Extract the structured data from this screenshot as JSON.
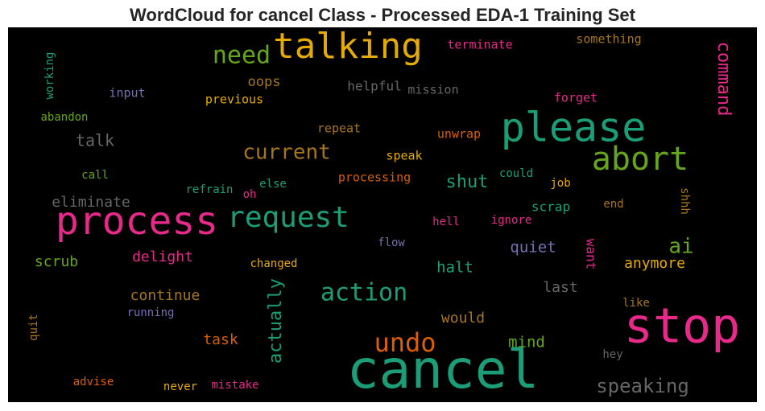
{
  "title": "WordCloud for cancel Class - Processed EDA-1 Training Set",
  "chart_data": {
    "type": "wordcloud",
    "title": "WordCloud for cancel Class - Processed EDA-1 Training Set",
    "background": "#000000",
    "colormap": "Dark2",
    "words": [
      {
        "text": "cancel",
        "weight": 100,
        "color": "#1b9e77"
      },
      {
        "text": "stop",
        "weight": 95,
        "color": "#e7298a"
      },
      {
        "text": "please",
        "weight": 80,
        "color": "#1b9e77"
      },
      {
        "text": "process",
        "weight": 78,
        "color": "#e7298a"
      },
      {
        "text": "talking",
        "weight": 70,
        "color": "#e6ab02"
      },
      {
        "text": "abort",
        "weight": 65,
        "color": "#66a61e"
      },
      {
        "text": "request",
        "weight": 58,
        "color": "#1b9e77"
      },
      {
        "text": "action",
        "weight": 48,
        "color": "#1b9e77"
      },
      {
        "text": "undo",
        "weight": 47,
        "color": "#d95f02"
      },
      {
        "text": "current",
        "weight": 44,
        "color": "#a6761d"
      },
      {
        "text": "need",
        "weight": 44,
        "color": "#66a61e"
      },
      {
        "text": "actually",
        "weight": 40,
        "color": "#1b9e77"
      },
      {
        "text": "speaking",
        "weight": 38,
        "color": "#666666"
      },
      {
        "text": "command",
        "weight": 38,
        "color": "#e7298a"
      },
      {
        "text": "ai",
        "weight": 36,
        "color": "#66a61e"
      },
      {
        "text": "shut",
        "weight": 32,
        "color": "#1b9e77"
      },
      {
        "text": "talk",
        "weight": 28,
        "color": "#666666"
      },
      {
        "text": "continue",
        "weight": 28,
        "color": "#a6761d"
      },
      {
        "text": "halt",
        "weight": 28,
        "color": "#1b9e77"
      },
      {
        "text": "mind",
        "weight": 27,
        "color": "#66a61e"
      },
      {
        "text": "quiet",
        "weight": 27,
        "color": "#7570b3"
      },
      {
        "text": "would",
        "weight": 27,
        "color": "#a6761d"
      },
      {
        "text": "task",
        "weight": 27,
        "color": "#d95f02"
      },
      {
        "text": "delight",
        "weight": 26,
        "color": "#e7298a"
      },
      {
        "text": "scrub",
        "weight": 26,
        "color": "#66a61e"
      },
      {
        "text": "eliminate",
        "weight": 26,
        "color": "#666666"
      },
      {
        "text": "anymore",
        "weight": 26,
        "color": "#e6ab02"
      },
      {
        "text": "oops",
        "weight": 25,
        "color": "#a6761d"
      },
      {
        "text": "last",
        "weight": 25,
        "color": "#666666"
      },
      {
        "text": "scrap",
        "weight": 24,
        "color": "#1b9e77"
      },
      {
        "text": "want",
        "weight": 24,
        "color": "#e7298a"
      },
      {
        "text": "helpful",
        "weight": 22,
        "color": "#666666"
      },
      {
        "text": "mission",
        "weight": 22,
        "color": "#666666"
      },
      {
        "text": "previous",
        "weight": 20,
        "color": "#e6ab02"
      },
      {
        "text": "forget",
        "weight": 20,
        "color": "#e7298a"
      },
      {
        "text": "input",
        "weight": 20,
        "color": "#7570b3"
      },
      {
        "text": "processing",
        "weight": 20,
        "color": "#d95f02"
      },
      {
        "text": "speak",
        "weight": 20,
        "color": "#e6ab02"
      },
      {
        "text": "repeat",
        "weight": 20,
        "color": "#a6761d"
      },
      {
        "text": "unwrap",
        "weight": 20,
        "color": "#d95f02"
      },
      {
        "text": "something",
        "weight": 20,
        "color": "#a6761d"
      },
      {
        "text": "terminate",
        "weight": 20,
        "color": "#e7298a"
      },
      {
        "text": "working",
        "weight": 20,
        "color": "#1b9e77"
      },
      {
        "text": "abandon",
        "weight": 19,
        "color": "#66a61e"
      },
      {
        "text": "call",
        "weight": 18,
        "color": "#66a61e"
      },
      {
        "text": "refrain",
        "weight": 18,
        "color": "#1b9e77"
      },
      {
        "text": "else",
        "weight": 18,
        "color": "#1b9e77"
      },
      {
        "text": "oh",
        "weight": 18,
        "color": "#e7298a"
      },
      {
        "text": "could",
        "weight": 18,
        "color": "#1b9e77"
      },
      {
        "text": "job",
        "weight": 18,
        "color": "#e6ab02"
      },
      {
        "text": "end",
        "weight": 18,
        "color": "#a6761d"
      },
      {
        "text": "shhh",
        "weight": 18,
        "color": "#a6761d"
      },
      {
        "text": "hell",
        "weight": 18,
        "color": "#e7298a"
      },
      {
        "text": "ignore",
        "weight": 18,
        "color": "#e7298a"
      },
      {
        "text": "flow",
        "weight": 18,
        "color": "#7570b3"
      },
      {
        "text": "changed",
        "weight": 18,
        "color": "#e6ab02"
      },
      {
        "text": "running",
        "weight": 18,
        "color": "#7570b3"
      },
      {
        "text": "like",
        "weight": 18,
        "color": "#a6761d"
      },
      {
        "text": "hey",
        "weight": 18,
        "color": "#666666"
      },
      {
        "text": "quit",
        "weight": 18,
        "color": "#a6761d"
      },
      {
        "text": "advise",
        "weight": 18,
        "color": "#d95f02"
      },
      {
        "text": "never",
        "weight": 18,
        "color": "#e6ab02"
      },
      {
        "text": "mistake",
        "weight": 18,
        "color": "#e7298a"
      }
    ]
  }
}
